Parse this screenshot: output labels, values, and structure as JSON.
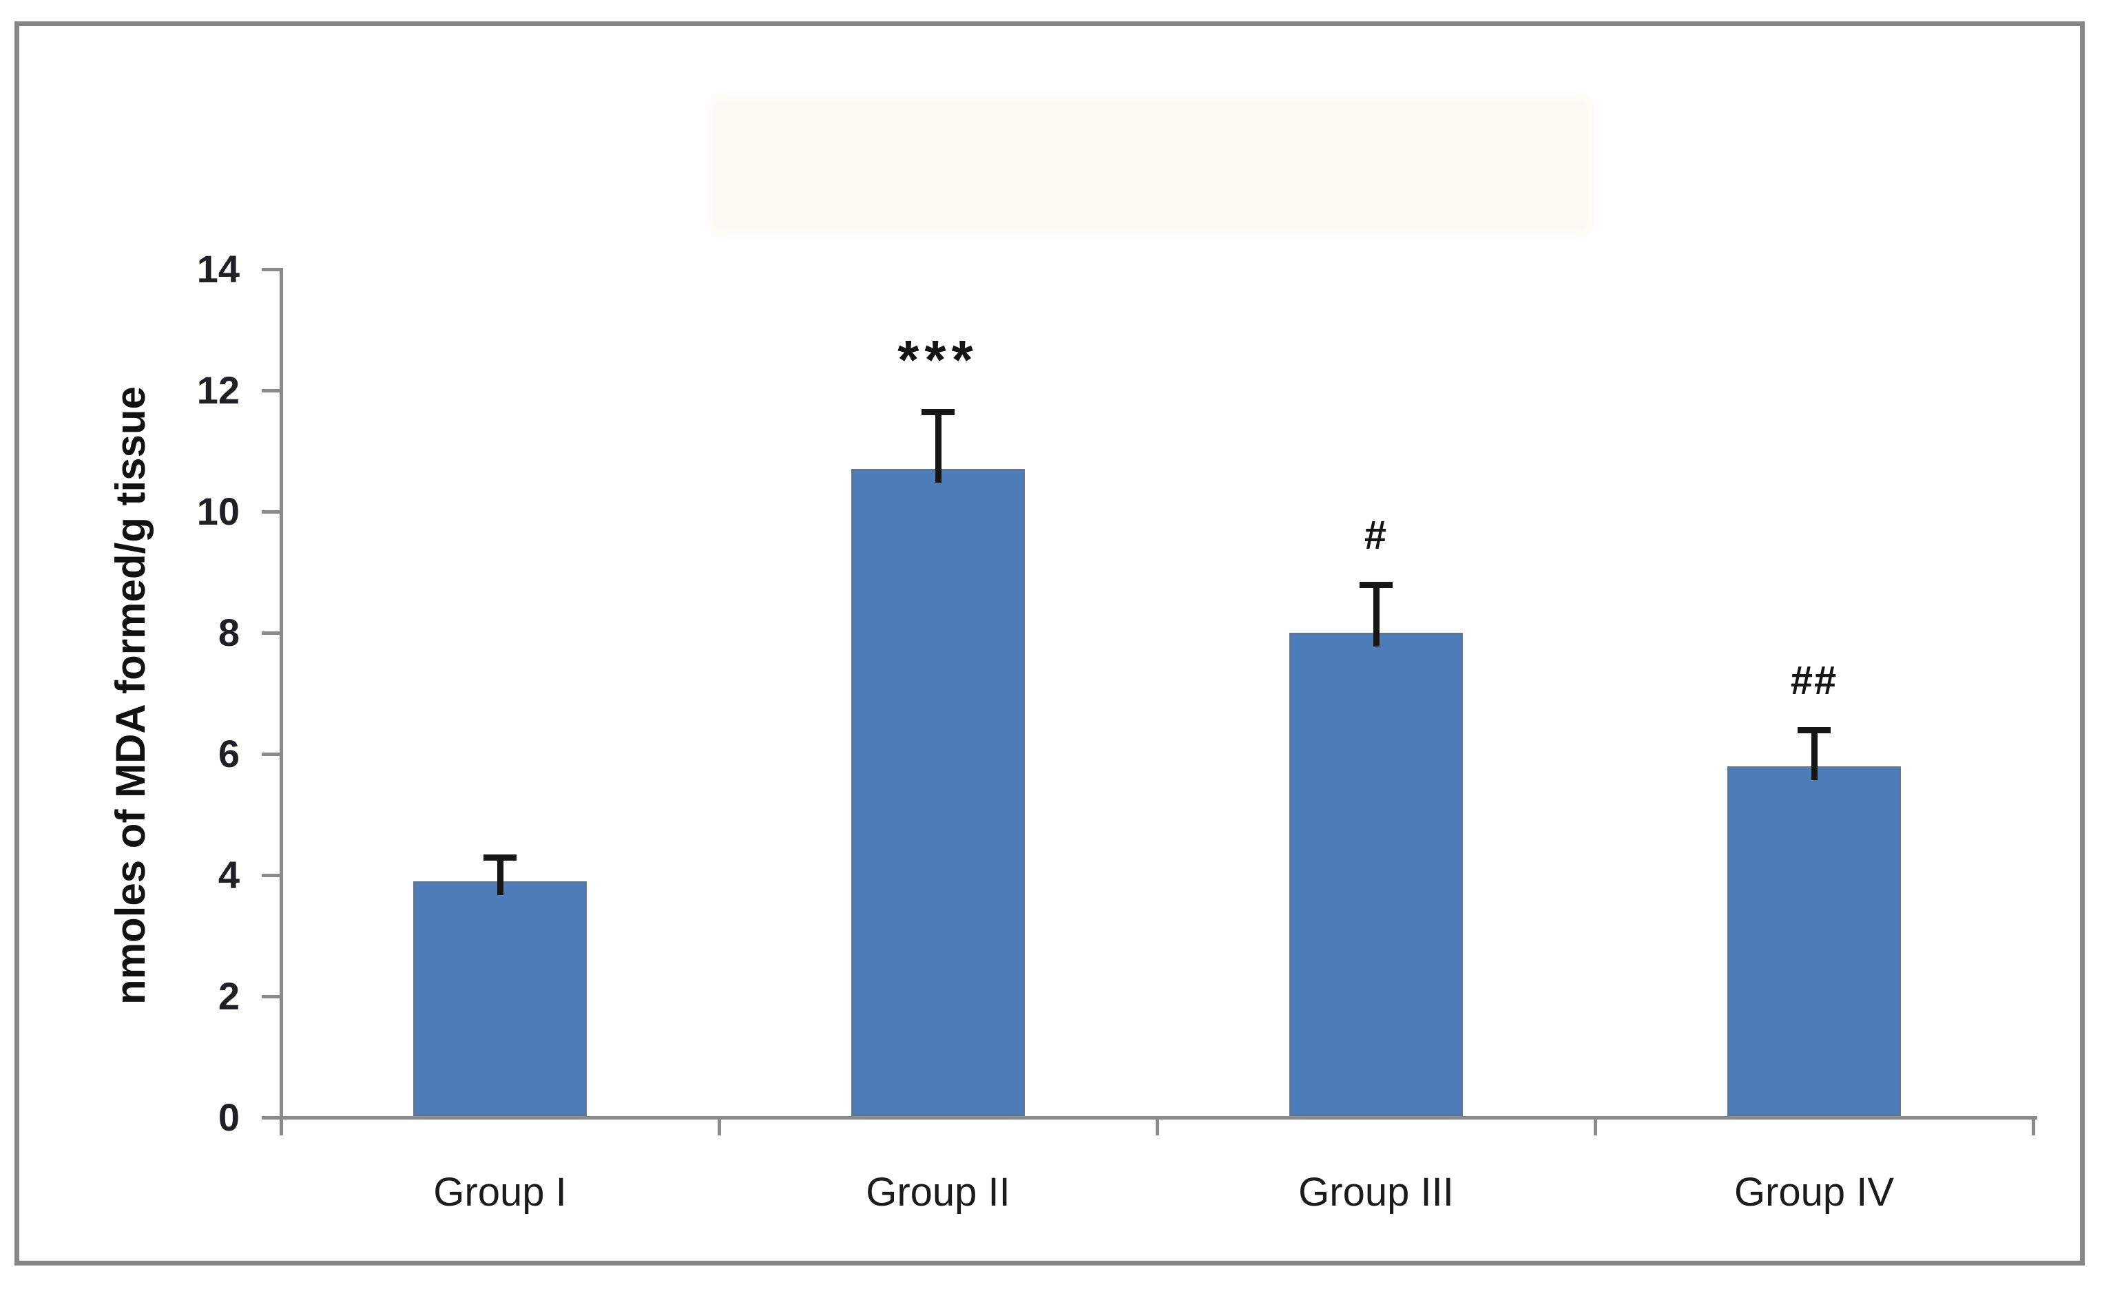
{
  "figure": {
    "background": "#ffffff",
    "frame_border_color": "#878787"
  },
  "chart_data": {
    "type": "bar",
    "title": "",
    "categories": [
      "Group I",
      "Group II",
      "Group III",
      "Group IV"
    ],
    "values": [
      3.9,
      10.7,
      8.0,
      5.8
    ],
    "error_upper": [
      0.4,
      0.95,
      0.8,
      0.6
    ],
    "annotations": [
      "",
      "***",
      "#",
      "##"
    ],
    "ylabel": "nmoles of MDA formed/g tissue",
    "xlabel": "",
    "ylim": [
      0,
      14
    ],
    "ytick_step": 2,
    "ytick_labels": [
      "0",
      "2",
      "4",
      "6",
      "8",
      "10",
      "12",
      "14"
    ],
    "grid": false,
    "legend": null,
    "bar_color": "#4c7dba",
    "bar_border_color": "#5f7794",
    "axis_color": "#8a8a8a",
    "error_bar_color": "#161616",
    "annotation_color": "#141414",
    "tick_label_color": "#1f1f28",
    "category_label_color": "#1b1b1b"
  }
}
